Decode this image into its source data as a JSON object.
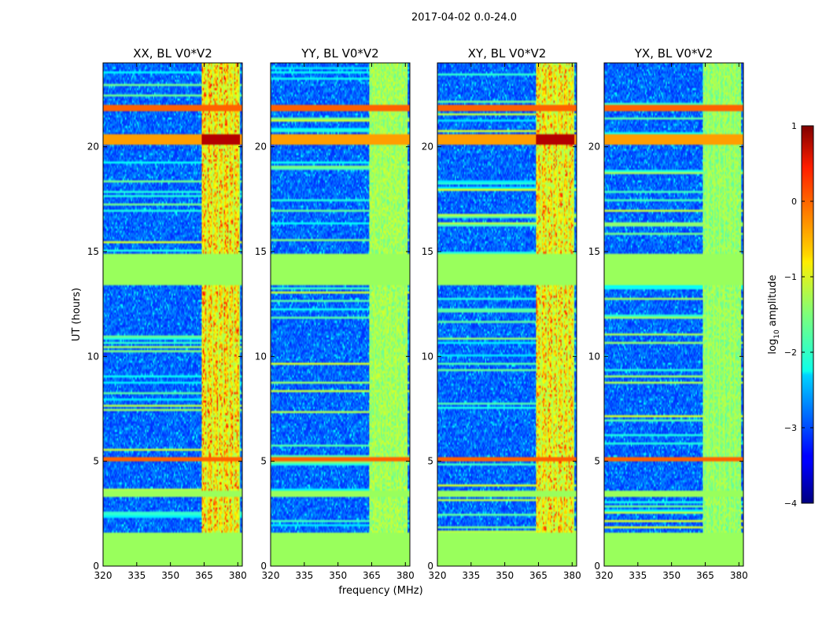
{
  "figure": {
    "suptitle": "2017-04-02 0.0-24.0"
  },
  "chart_data": {
    "type": "heatmap",
    "ylabel": "UT (hours)",
    "xlabel": "frequency (MHz)",
    "xlim": [
      320,
      382
    ],
    "ylim": [
      0,
      24
    ],
    "x_ticks": [
      320,
      335,
      350,
      365,
      380
    ],
    "y_ticks": [
      0,
      5,
      10,
      15,
      20
    ],
    "panels": [
      {
        "title": "XX, BL V0*V2",
        "strong_rfi": true,
        "rfi_level": 0.9
      },
      {
        "title": "YY, BL V0*V2",
        "strong_rfi": false,
        "rfi_level": 0.6
      },
      {
        "title": "XY, BL V0*V2",
        "strong_rfi": true,
        "rfi_level": 0.85
      },
      {
        "title": "YX, BL V0*V2",
        "strong_rfi": false,
        "rfi_level": 0.55
      }
    ],
    "rfi_band_mhz": [
      364,
      381
    ],
    "rfi_channels_mhz": [
      366,
      368.5,
      371,
      373,
      376,
      378,
      380.5
    ],
    "flagged_blocks_hours": [
      [
        0,
        1.6
      ],
      [
        13.4,
        14.9
      ],
      [
        3.3,
        3.6
      ]
    ],
    "strong_rfi_rows_hours": [
      [
        5.0,
        5.2
      ],
      [
        21.7,
        22.0
      ],
      [
        20.1,
        20.6
      ]
    ],
    "colorbar": {
      "label": "log",
      "label_sub": "10",
      "label_suffix": " amplitude",
      "vmin": -4,
      "vmax": 1,
      "ticks": [
        1,
        0,
        -1,
        -2,
        -3,
        -4
      ],
      "tick_labels": [
        "1",
        "0",
        "−1",
        "−2",
        "−3",
        "−4"
      ],
      "colormap": "jet"
    },
    "colors": {
      "flagged": "#99ff5c",
      "background": "#1a3cff",
      "axes": "#000000"
    }
  }
}
